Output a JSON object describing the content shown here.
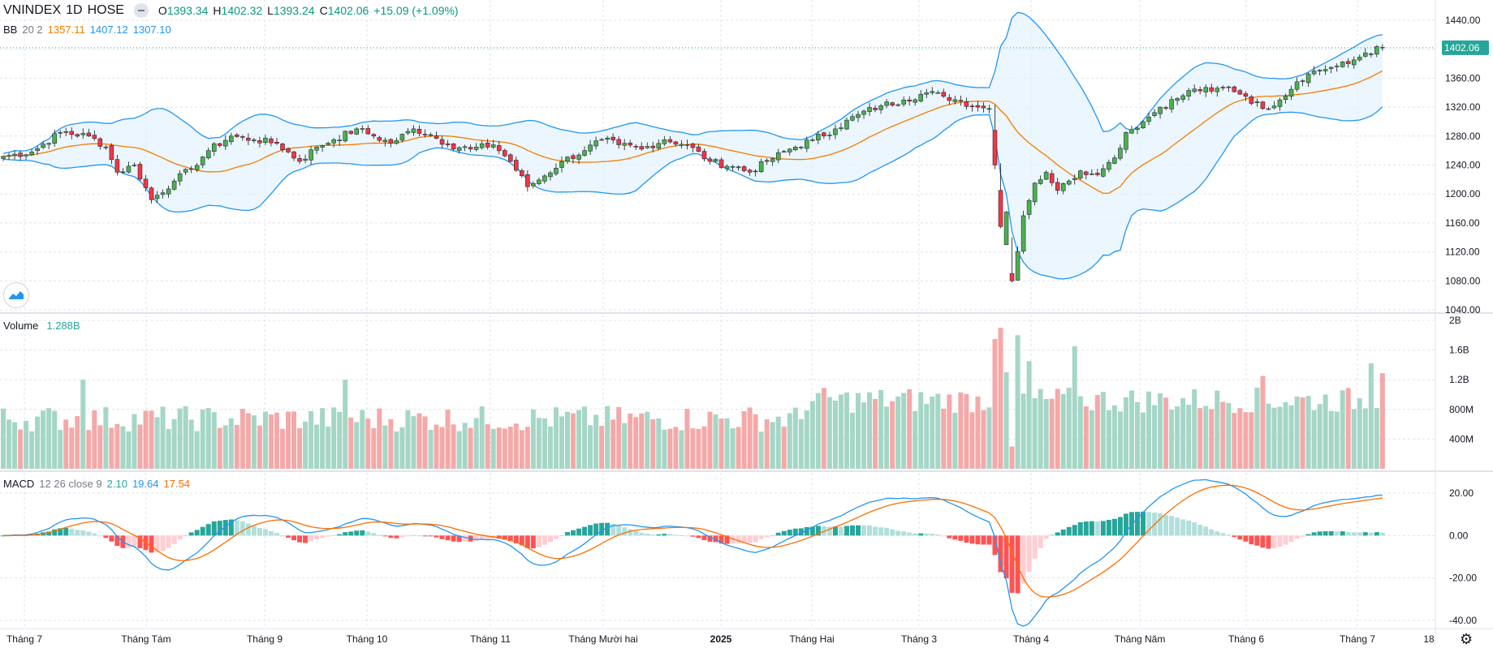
{
  "header": {
    "symbol": "VNINDEX",
    "interval": "1D",
    "exchange": "HOSE",
    "open_label": "O",
    "open": "1393.34",
    "high_label": "H",
    "high": "1402.32",
    "low_label": "L",
    "low": "1393.24",
    "close_label": "C",
    "close": "1402.06",
    "change": "+15.09 (+1.09%)"
  },
  "bb_legend": {
    "name": "BB",
    "params": "20 2",
    "basis": "1357.11",
    "upper": "1407.12",
    "lower": "1307.10"
  },
  "volume_legend": {
    "name": "Volume",
    "value": "1.288B"
  },
  "macd_legend": {
    "name": "MACD",
    "params": "12 26 close 9",
    "hist": "2.10",
    "macd": "19.64",
    "signal": "17.54"
  },
  "last_price_label": "1402.06",
  "colors": {
    "up": "#26a69a",
    "down": "#ef5350",
    "bb_line": "#2196f3",
    "bb_fill": "#e3f2fd",
    "basis": "#f57c00",
    "macd": "#2196f3",
    "signal": "#ff6d00",
    "candle_up": "#4caf50",
    "candle_down": "#f23645"
  },
  "chart_data": [
    {
      "type": "candlestick",
      "title": "VNINDEX 1D HOSE",
      "y_ticks": [
        "1440.00",
        "1400.00",
        "1360.00",
        "1320.00",
        "1280.00",
        "1240.00",
        "1200.00",
        "1160.00",
        "1120.00",
        "1080.00",
        "1040.00"
      ],
      "ylim": [
        1040,
        1440
      ],
      "x_labels": [
        "Tháng 7",
        "Tháng Tám",
        "Tháng 9",
        "Tháng 10",
        "Tháng 11",
        "Tháng Mười hai",
        "2025",
        "Tháng Hai",
        "Tháng 3",
        "Tháng 4",
        "Tháng Năm",
        "Tháng 6",
        "Tháng 7",
        "18"
      ],
      "close_anchors": [
        [
          0,
          1252
        ],
        [
          5,
          1258
        ],
        [
          10,
          1285
        ],
        [
          15,
          1280
        ],
        [
          18,
          1265
        ],
        [
          20,
          1230
        ],
        [
          23,
          1240
        ],
        [
          26,
          1192
        ],
        [
          30,
          1218
        ],
        [
          33,
          1235
        ],
        [
          36,
          1260
        ],
        [
          40,
          1280
        ],
        [
          44,
          1275
        ],
        [
          48,
          1270
        ],
        [
          52,
          1245
        ],
        [
          55,
          1265
        ],
        [
          58,
          1275
        ],
        [
          62,
          1290
        ],
        [
          65,
          1280
        ],
        [
          68,
          1270
        ],
        [
          72,
          1290
        ],
        [
          75,
          1282
        ],
        [
          78,
          1268
        ],
        [
          82,
          1262
        ],
        [
          86,
          1268
        ],
        [
          89,
          1245
        ],
        [
          92,
          1210
        ],
        [
          95,
          1225
        ],
        [
          98,
          1245
        ],
        [
          102,
          1260
        ],
        [
          105,
          1275
        ],
        [
          108,
          1268
        ],
        [
          112,
          1262
        ],
        [
          116,
          1275
        ],
        [
          120,
          1268
        ],
        [
          124,
          1245
        ],
        [
          128,
          1238
        ],
        [
          131,
          1230
        ],
        [
          134,
          1245
        ],
        [
          138,
          1262
        ],
        [
          142,
          1275
        ],
        [
          146,
          1290
        ],
        [
          150,
          1310
        ],
        [
          154,
          1322
        ],
        [
          158,
          1330
        ],
        [
          162,
          1340
        ],
        [
          165,
          1335
        ],
        [
          168,
          1328
        ],
        [
          171,
          1320
        ],
        [
          173,
          1318
        ],
        [
          174,
          1240
        ],
        [
          175,
          1155
        ],
        [
          176,
          1175
        ],
        [
          177,
          1080
        ],
        [
          179,
          1170
        ],
        [
          181,
          1215
        ],
        [
          183,
          1230
        ],
        [
          185,
          1205
        ],
        [
          187,
          1218
        ],
        [
          189,
          1232
        ],
        [
          191,
          1228
        ],
        [
          193,
          1235
        ],
        [
          195,
          1250
        ],
        [
          197,
          1285
        ],
        [
          200,
          1300
        ],
        [
          203,
          1320
        ],
        [
          206,
          1332
        ],
        [
          209,
          1345
        ],
        [
          212,
          1342
        ],
        [
          215,
          1348
        ],
        [
          218,
          1335
        ],
        [
          221,
          1318
        ],
        [
          224,
          1330
        ],
        [
          227,
          1355
        ],
        [
          230,
          1370
        ],
        [
          233,
          1375
        ],
        [
          236,
          1380
        ],
        [
          239,
          1395
        ],
        [
          242,
          1402
        ]
      ],
      "bb": {
        "basis": "SMA 20",
        "stdev": 2
      }
    },
    {
      "type": "bar",
      "title": "Volume",
      "y_ticks": [
        "2B",
        "1.6B",
        "1.2B",
        "800M",
        "400M"
      ],
      "ylim": [
        0,
        2000000000
      ],
      "last_value": "1.288B"
    },
    {
      "type": "line",
      "title": "MACD 12 26 close 9",
      "y_ticks": [
        "20.00",
        "0.00",
        "-20.00",
        "-40.00"
      ],
      "ylim": [
        -40,
        25
      ],
      "series": [
        {
          "name": "MACD"
        },
        {
          "name": "Signal"
        },
        {
          "name": "Histogram"
        }
      ]
    }
  ]
}
